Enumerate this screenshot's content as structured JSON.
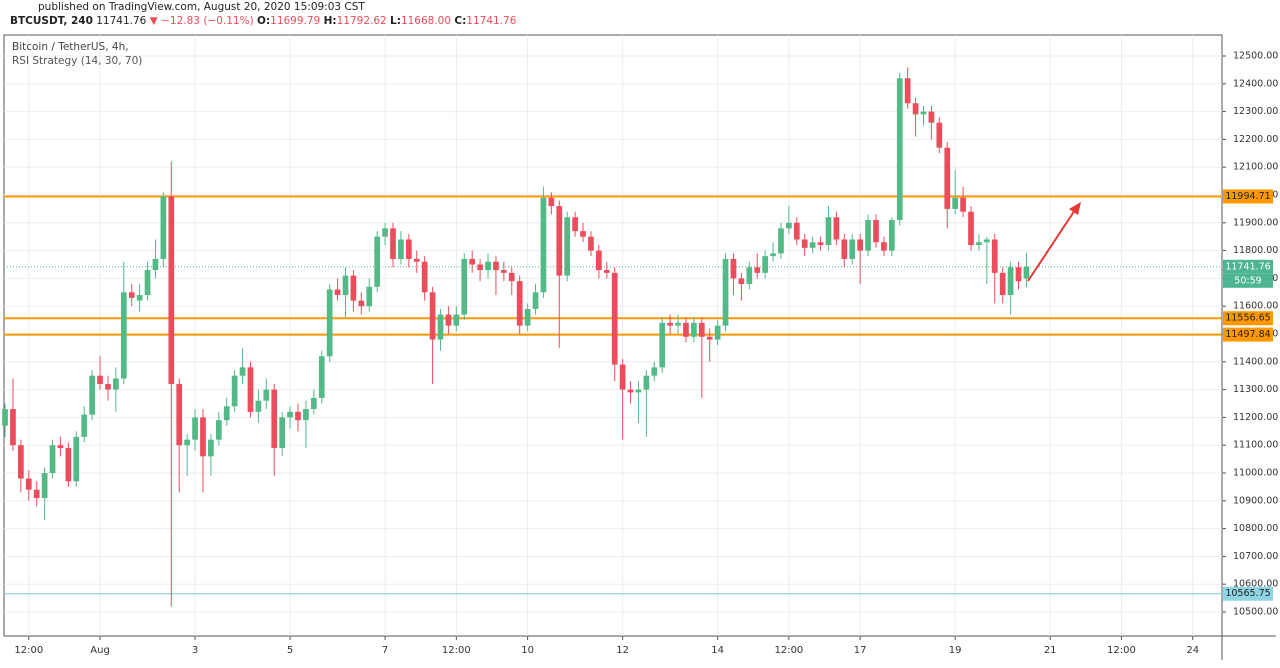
{
  "header": {
    "published": "published on TradingView.com, August 20, 2020 15:09:03 CST",
    "symbol": "BTCUSDT, 240",
    "last": "11741.76",
    "arrow": "▼",
    "change": "−12.83 (−0.11%)",
    "o_label": "O:",
    "o": "11699.79",
    "h_label": "H:",
    "h": "11792.62",
    "l_label": "L:",
    "l": "11668.00",
    "c_label": "C:",
    "c": "11741.76"
  },
  "chart_data": {
    "type": "candlestick",
    "title": "Bitcoin / TetherUS, 4h,",
    "subtitle": "RSI Strategy (14, 30, 70)",
    "up_color": "#53b987",
    "down_color": "#eb4d5c",
    "grid": true,
    "xlim": [
      -0.13,
      153.7
    ],
    "ylim": [
      10413.7,
      12575.5
    ],
    "xticks": [
      {
        "value": 3,
        "label": "12:00"
      },
      {
        "value": 12,
        "label": "Aug"
      },
      {
        "value": 24,
        "label": "3"
      },
      {
        "value": 36,
        "label": "5"
      },
      {
        "value": 48,
        "label": "7"
      },
      {
        "value": 57,
        "label": "12:00"
      },
      {
        "value": 66,
        "label": "10"
      },
      {
        "value": 78,
        "label": "12"
      },
      {
        "value": 90,
        "label": "14"
      },
      {
        "value": 99,
        "label": "12:00"
      },
      {
        "value": 108,
        "label": "17"
      },
      {
        "value": 120,
        "label": "19"
      },
      {
        "value": 132,
        "label": "21"
      },
      {
        "value": 141,
        "label": "12:00"
      },
      {
        "value": 150,
        "label": "24"
      }
    ],
    "yticks": [
      {
        "value": 10500,
        "label": "10500.00"
      },
      {
        "value": 10600,
        "label": "10600.00"
      },
      {
        "value": 10700,
        "label": "10700.00"
      },
      {
        "value": 10800,
        "label": "10800.00"
      },
      {
        "value": 10900,
        "label": "10900.00"
      },
      {
        "value": 11000,
        "label": "11000.00"
      },
      {
        "value": 11100,
        "label": "11100.00"
      },
      {
        "value": 11200,
        "label": "11200.00"
      },
      {
        "value": 11300,
        "label": "11300.00"
      },
      {
        "value": 11400,
        "label": "11400.00"
      },
      {
        "value": 11500,
        "label": "11500.00"
      },
      {
        "value": 11600,
        "label": "11600.00"
      },
      {
        "value": 11700,
        "label": "11700.00"
      },
      {
        "value": 11800,
        "label": "11800.00"
      },
      {
        "value": 11900,
        "label": "11900.00"
      },
      {
        "value": 12000,
        "label": "12000.00"
      },
      {
        "value": 12100,
        "label": "12100.00"
      },
      {
        "value": 12200,
        "label": "12200.00"
      },
      {
        "value": 12300,
        "label": "12300.00"
      },
      {
        "value": 12400,
        "label": "12400.00"
      },
      {
        "value": 12500,
        "label": "12500.00"
      }
    ],
    "levels": [
      {
        "value": 11994.71,
        "color": "#ff9800"
      },
      {
        "value": 11556.65,
        "color": "#ff9800"
      },
      {
        "value": 11497.84,
        "color": "#ff9800"
      },
      {
        "value": 10565.75,
        "color": "#8fd5e3"
      }
    ],
    "last_price": {
      "value": 11741.76,
      "color": "#4db690"
    },
    "countdown": "50:59",
    "ohlc": [
      [
        11170,
        11250,
        11130,
        11230
      ],
      [
        11230,
        11340,
        11080,
        11100
      ],
      [
        11100,
        11120,
        10930,
        10980
      ],
      [
        10980,
        11010,
        10900,
        10940
      ],
      [
        10940,
        10970,
        10880,
        10910
      ],
      [
        10910,
        11020,
        10830,
        11000
      ],
      [
        11000,
        11120,
        10980,
        11100
      ],
      [
        11100,
        11130,
        11060,
        11090
      ],
      [
        11090,
        11110,
        10950,
        10970
      ],
      [
        10970,
        11150,
        10950,
        11130
      ],
      [
        11130,
        11240,
        11110,
        11210
      ],
      [
        11210,
        11370,
        11190,
        11350
      ],
      [
        11350,
        11420,
        11300,
        11320
      ],
      [
        11320,
        11350,
        11260,
        11300
      ],
      [
        11300,
        11380,
        11220,
        11340
      ],
      [
        11340,
        11760,
        11320,
        11650
      ],
      [
        11650,
        11680,
        11600,
        11630
      ],
      [
        11620,
        11680,
        11580,
        11640
      ],
      [
        11640,
        11760,
        11620,
        11730
      ],
      [
        11730,
        11840,
        11700,
        11770
      ],
      [
        11770,
        12010,
        11740,
        11995
      ],
      [
        11995,
        12120,
        10520,
        11320
      ],
      [
        11320,
        11340,
        10930,
        11100
      ],
      [
        11100,
        11140,
        10990,
        11120
      ],
      [
        11120,
        11230,
        11080,
        11200
      ],
      [
        11200,
        11230,
        10930,
        11060
      ],
      [
        11060,
        11140,
        10990,
        11120
      ],
      [
        11120,
        11220,
        11100,
        11190
      ],
      [
        11190,
        11270,
        11170,
        11240
      ],
      [
        11240,
        11370,
        11220,
        11350
      ],
      [
        11350,
        11450,
        11320,
        11380
      ],
      [
        11380,
        11400,
        11200,
        11220
      ],
      [
        11220,
        11300,
        11180,
        11260
      ],
      [
        11260,
        11340,
        11230,
        11300
      ],
      [
        11300,
        11320,
        10990,
        11090
      ],
      [
        11090,
        11220,
        11060,
        11200
      ],
      [
        11200,
        11240,
        11160,
        11220
      ],
      [
        11220,
        11250,
        11150,
        11190
      ],
      [
        11190,
        11260,
        11090,
        11230
      ],
      [
        11230,
        11300,
        11210,
        11270
      ],
      [
        11270,
        11440,
        11250,
        11420
      ],
      [
        11420,
        11680,
        11400,
        11660
      ],
      [
        11660,
        11700,
        11620,
        11640
      ],
      [
        11640,
        11740,
        11560,
        11710
      ],
      [
        11710,
        11730,
        11580,
        11620
      ],
      [
        11620,
        11650,
        11570,
        11600
      ],
      [
        11600,
        11700,
        11580,
        11670
      ],
      [
        11670,
        11870,
        11650,
        11850
      ],
      [
        11850,
        11900,
        11820,
        11880
      ],
      [
        11880,
        11900,
        11740,
        11770
      ],
      [
        11770,
        11870,
        11750,
        11840
      ],
      [
        11840,
        11860,
        11740,
        11770
      ],
      [
        11770,
        11800,
        11720,
        11760
      ],
      [
        11760,
        11780,
        11620,
        11650
      ],
      [
        11650,
        11670,
        11320,
        11480
      ],
      [
        11480,
        11590,
        11440,
        11570
      ],
      [
        11570,
        11600,
        11500,
        11530
      ],
      [
        11530,
        11600,
        11510,
        11570
      ],
      [
        11570,
        11790,
        11550,
        11770
      ],
      [
        11770,
        11800,
        11720,
        11750
      ],
      [
        11750,
        11770,
        11690,
        11730
      ],
      [
        11730,
        11790,
        11700,
        11760
      ],
      [
        11760,
        11780,
        11640,
        11730
      ],
      [
        11730,
        11760,
        11690,
        11720
      ],
      [
        11720,
        11740,
        11640,
        11690
      ],
      [
        11690,
        11710,
        11500,
        11530
      ],
      [
        11530,
        11610,
        11510,
        11590
      ],
      [
        11590,
        11680,
        11570,
        11650
      ],
      [
        11650,
        12030,
        11630,
        11990
      ],
      [
        11990,
        12010,
        11930,
        11960
      ],
      [
        11960,
        11980,
        11450,
        11710
      ],
      [
        11710,
        11940,
        11690,
        11920
      ],
      [
        11920,
        11940,
        11850,
        11870
      ],
      [
        11870,
        11900,
        11830,
        11850
      ],
      [
        11850,
        11870,
        11780,
        11800
      ],
      [
        11800,
        11820,
        11700,
        11730
      ],
      [
        11730,
        11760,
        11700,
        11720
      ],
      [
        11720,
        11740,
        11330,
        11390
      ],
      [
        11390,
        11410,
        11120,
        11300
      ],
      [
        11300,
        11330,
        11250,
        11290
      ],
      [
        11290,
        11330,
        11180,
        11300
      ],
      [
        11300,
        11370,
        11130,
        11350
      ],
      [
        11350,
        11400,
        11330,
        11380
      ],
      [
        11380,
        11560,
        11360,
        11540
      ],
      [
        11540,
        11570,
        11500,
        11530
      ],
      [
        11530,
        11570,
        11500,
        11540
      ],
      [
        11540,
        11560,
        11470,
        11490
      ],
      [
        11490,
        11560,
        11470,
        11540
      ],
      [
        11540,
        11560,
        11270,
        11490
      ],
      [
        11490,
        11520,
        11400,
        11480
      ],
      [
        11480,
        11550,
        11460,
        11530
      ],
      [
        11530,
        11790,
        11510,
        11770
      ],
      [
        11770,
        11790,
        11640,
        11700
      ],
      [
        11700,
        11720,
        11620,
        11680
      ],
      [
        11680,
        11760,
        11660,
        11740
      ],
      [
        11740,
        11790,
        11700,
        11720
      ],
      [
        11720,
        11800,
        11700,
        11780
      ],
      [
        11780,
        11830,
        11760,
        11790
      ],
      [
        11790,
        11900,
        11770,
        11880
      ],
      [
        11880,
        11960,
        11860,
        11900
      ],
      [
        11900,
        11920,
        11820,
        11840
      ],
      [
        11840,
        11860,
        11780,
        11810
      ],
      [
        11810,
        11850,
        11790,
        11830
      ],
      [
        11830,
        11850,
        11800,
        11820
      ],
      [
        11820,
        11960,
        11800,
        11920
      ],
      [
        11920,
        11940,
        11820,
        11840
      ],
      [
        11840,
        11860,
        11740,
        11770
      ],
      [
        11770,
        11860,
        11750,
        11840
      ],
      [
        11840,
        11860,
        11680,
        11800
      ],
      [
        11800,
        11930,
        11780,
        11910
      ],
      [
        11910,
        11930,
        11810,
        11830
      ],
      [
        11830,
        11850,
        11780,
        11800
      ],
      [
        11800,
        11920,
        11780,
        11910
      ],
      [
        11910,
        12440,
        11890,
        12420
      ],
      [
        12420,
        12460,
        12310,
        12330
      ],
      [
        12330,
        12350,
        12210,
        12290
      ],
      [
        12290,
        12320,
        12250,
        12300
      ],
      [
        12300,
        12320,
        12200,
        12260
      ],
      [
        12260,
        12280,
        12150,
        12170
      ],
      [
        12170,
        12190,
        11880,
        11950
      ],
      [
        11950,
        12090,
        11930,
        11990
      ],
      [
        11990,
        12030,
        11920,
        11940
      ],
      [
        11940,
        11960,
        11800,
        11820
      ],
      [
        11820,
        11860,
        11800,
        11830
      ],
      [
        11830,
        11850,
        11680,
        11840
      ],
      [
        11840,
        11860,
        11610,
        11720
      ],
      [
        11720,
        11740,
        11610,
        11640
      ],
      [
        11640,
        11760,
        11570,
        11740
      ],
      [
        11740,
        11760,
        11660,
        11690
      ],
      [
        11699.79,
        11792.62,
        11668,
        11741.76
      ]
    ]
  }
}
